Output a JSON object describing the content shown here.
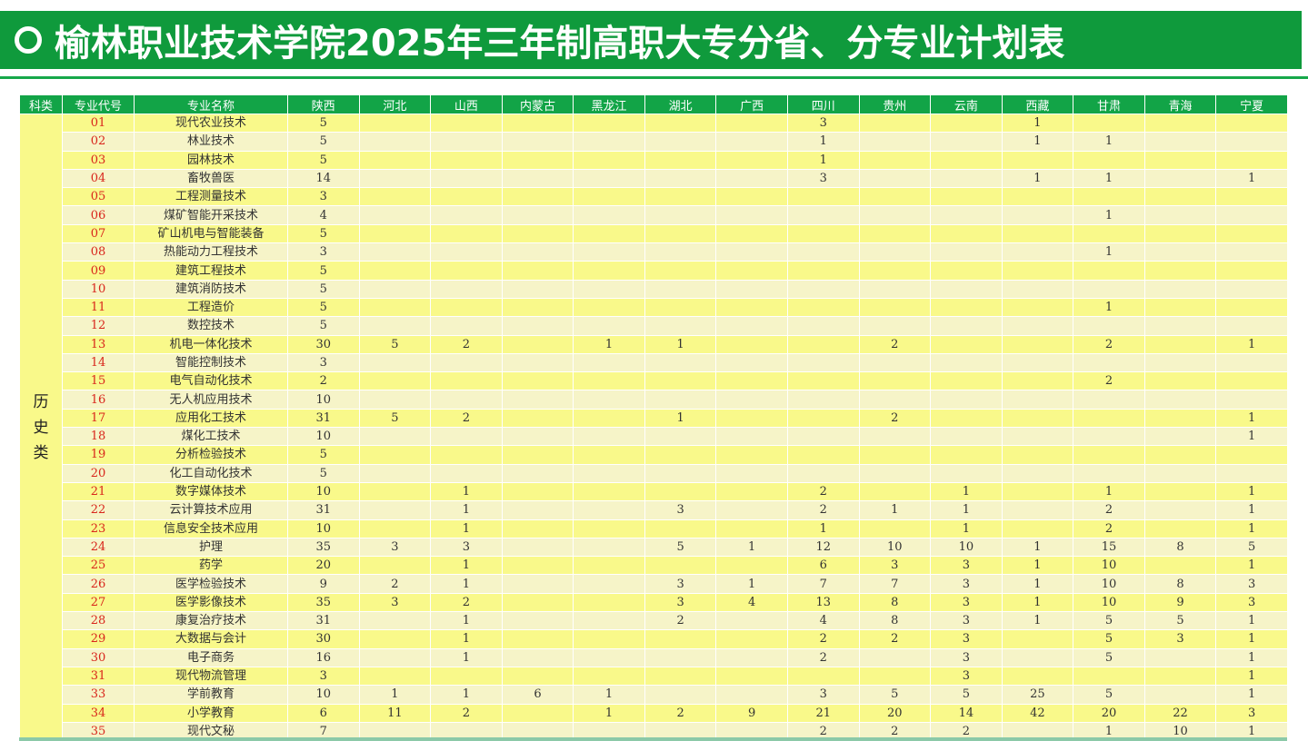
{
  "title": "榆林职业技术学院2025年三年制高职大专分省、分专业计划表",
  "colors": {
    "title_bg": "#0f9a3c",
    "header_bg": "#12a447",
    "row_odd": "#f9f98a",
    "row_even": "#f6f4c8",
    "code_text": "#d9261c"
  },
  "table": {
    "headers": [
      "科类",
      "专业代号",
      "专业名称",
      "陕西",
      "河北",
      "山西",
      "内蒙古",
      "黑龙江",
      "湖北",
      "广西",
      "四川",
      "贵州",
      "云南",
      "西藏",
      "甘肃",
      "青海",
      "宁夏"
    ],
    "category": "历史类",
    "rows": [
      {
        "code": "01",
        "name": "现代农业技术",
        "values": [
          "5",
          "",
          "",
          "",
          "",
          "",
          "",
          "3",
          "",
          "",
          "1",
          "",
          "",
          ""
        ]
      },
      {
        "code": "02",
        "name": "林业技术",
        "values": [
          "5",
          "",
          "",
          "",
          "",
          "",
          "",
          "1",
          "",
          "",
          "1",
          "1",
          "",
          ""
        ]
      },
      {
        "code": "03",
        "name": "园林技术",
        "values": [
          "5",
          "",
          "",
          "",
          "",
          "",
          "",
          "1",
          "",
          "",
          "",
          "",
          "",
          ""
        ]
      },
      {
        "code": "04",
        "name": "畜牧兽医",
        "values": [
          "14",
          "",
          "",
          "",
          "",
          "",
          "",
          "3",
          "",
          "",
          "1",
          "1",
          "",
          "1"
        ]
      },
      {
        "code": "05",
        "name": "工程测量技术",
        "values": [
          "3",
          "",
          "",
          "",
          "",
          "",
          "",
          "",
          "",
          "",
          "",
          "",
          "",
          ""
        ]
      },
      {
        "code": "06",
        "name": "煤矿智能开采技术",
        "values": [
          "4",
          "",
          "",
          "",
          "",
          "",
          "",
          "",
          "",
          "",
          "",
          "1",
          "",
          ""
        ]
      },
      {
        "code": "07",
        "name": "矿山机电与智能装备",
        "values": [
          "5",
          "",
          "",
          "",
          "",
          "",
          "",
          "",
          "",
          "",
          "",
          "",
          "",
          ""
        ]
      },
      {
        "code": "08",
        "name": "热能动力工程技术",
        "values": [
          "3",
          "",
          "",
          "",
          "",
          "",
          "",
          "",
          "",
          "",
          "",
          "1",
          "",
          ""
        ]
      },
      {
        "code": "09",
        "name": "建筑工程技术",
        "values": [
          "5",
          "",
          "",
          "",
          "",
          "",
          "",
          "",
          "",
          "",
          "",
          "",
          "",
          ""
        ]
      },
      {
        "code": "10",
        "name": "建筑消防技术",
        "values": [
          "5",
          "",
          "",
          "",
          "",
          "",
          "",
          "",
          "",
          "",
          "",
          "",
          "",
          ""
        ]
      },
      {
        "code": "11",
        "name": "工程造价",
        "values": [
          "5",
          "",
          "",
          "",
          "",
          "",
          "",
          "",
          "",
          "",
          "",
          "1",
          "",
          ""
        ]
      },
      {
        "code": "12",
        "name": "数控技术",
        "values": [
          "5",
          "",
          "",
          "",
          "",
          "",
          "",
          "",
          "",
          "",
          "",
          "",
          "",
          ""
        ]
      },
      {
        "code": "13",
        "name": "机电一体化技术",
        "values": [
          "30",
          "5",
          "2",
          "",
          "1",
          "1",
          "",
          "",
          "2",
          "",
          "",
          "2",
          "",
          "1"
        ]
      },
      {
        "code": "14",
        "name": "智能控制技术",
        "values": [
          "3",
          "",
          "",
          "",
          "",
          "",
          "",
          "",
          "",
          "",
          "",
          "",
          "",
          ""
        ]
      },
      {
        "code": "15",
        "name": "电气自动化技术",
        "values": [
          "2",
          "",
          "",
          "",
          "",
          "",
          "",
          "",
          "",
          "",
          "",
          "2",
          "",
          ""
        ]
      },
      {
        "code": "16",
        "name": "无人机应用技术",
        "values": [
          "10",
          "",
          "",
          "",
          "",
          "",
          "",
          "",
          "",
          "",
          "",
          "",
          "",
          ""
        ]
      },
      {
        "code": "17",
        "name": "应用化工技术",
        "values": [
          "31",
          "5",
          "2",
          "",
          "",
          "1",
          "",
          "",
          "2",
          "",
          "",
          "",
          "",
          "1"
        ]
      },
      {
        "code": "18",
        "name": "煤化工技术",
        "values": [
          "10",
          "",
          "",
          "",
          "",
          "",
          "",
          "",
          "",
          "",
          "",
          "",
          "",
          "1"
        ]
      },
      {
        "code": "19",
        "name": "分析检验技术",
        "values": [
          "5",
          "",
          "",
          "",
          "",
          "",
          "",
          "",
          "",
          "",
          "",
          "",
          "",
          ""
        ]
      },
      {
        "code": "20",
        "name": "化工自动化技术",
        "values": [
          "5",
          "",
          "",
          "",
          "",
          "",
          "",
          "",
          "",
          "",
          "",
          "",
          "",
          ""
        ]
      },
      {
        "code": "21",
        "name": "数字媒体技术",
        "values": [
          "10",
          "",
          "1",
          "",
          "",
          "",
          "",
          "2",
          "",
          "1",
          "",
          "1",
          "",
          "1"
        ]
      },
      {
        "code": "22",
        "name": "云计算技术应用",
        "values": [
          "31",
          "",
          "1",
          "",
          "",
          "3",
          "",
          "2",
          "1",
          "1",
          "",
          "2",
          "",
          "1"
        ]
      },
      {
        "code": "23",
        "name": "信息安全技术应用",
        "values": [
          "10",
          "",
          "1",
          "",
          "",
          "",
          "",
          "1",
          "",
          "1",
          "",
          "2",
          "",
          "1"
        ]
      },
      {
        "code": "24",
        "name": "护理",
        "values": [
          "35",
          "3",
          "3",
          "",
          "",
          "5",
          "1",
          "12",
          "10",
          "10",
          "1",
          "15",
          "8",
          "5"
        ]
      },
      {
        "code": "25",
        "name": "药学",
        "values": [
          "20",
          "",
          "1",
          "",
          "",
          "",
          "",
          "6",
          "3",
          "3",
          "1",
          "10",
          "",
          "1"
        ]
      },
      {
        "code": "26",
        "name": "医学检验技术",
        "values": [
          "9",
          "2",
          "1",
          "",
          "",
          "3",
          "1",
          "7",
          "7",
          "3",
          "1",
          "10",
          "8",
          "3"
        ]
      },
      {
        "code": "27",
        "name": "医学影像技术",
        "values": [
          "35",
          "3",
          "2",
          "",
          "",
          "3",
          "4",
          "13",
          "8",
          "3",
          "1",
          "10",
          "9",
          "3"
        ]
      },
      {
        "code": "28",
        "name": "康复治疗技术",
        "values": [
          "31",
          "",
          "1",
          "",
          "",
          "2",
          "",
          "4",
          "8",
          "3",
          "1",
          "5",
          "5",
          "1"
        ]
      },
      {
        "code": "29",
        "name": "大数据与会计",
        "values": [
          "30",
          "",
          "1",
          "",
          "",
          "",
          "",
          "2",
          "2",
          "3",
          "",
          "5",
          "3",
          "1"
        ]
      },
      {
        "code": "30",
        "name": "电子商务",
        "values": [
          "16",
          "",
          "1",
          "",
          "",
          "",
          "",
          "2",
          "",
          "3",
          "",
          "5",
          "",
          "1"
        ]
      },
      {
        "code": "31",
        "name": "现代物流管理",
        "values": [
          "3",
          "",
          "",
          "",
          "",
          "",
          "",
          "",
          "",
          "3",
          "",
          "",
          "",
          "1"
        ]
      },
      {
        "code": "33",
        "name": "学前教育",
        "values": [
          "10",
          "1",
          "1",
          "6",
          "1",
          "",
          "",
          "3",
          "5",
          "5",
          "25",
          "5",
          "",
          "1"
        ]
      },
      {
        "code": "34",
        "name": "小学教育",
        "values": [
          "6",
          "11",
          "2",
          "",
          "1",
          "2",
          "9",
          "21",
          "20",
          "14",
          "42",
          "20",
          "22",
          "3"
        ]
      },
      {
        "code": "35",
        "name": "现代文秘",
        "values": [
          "7",
          "",
          "",
          "",
          "",
          "",
          "",
          "2",
          "2",
          "2",
          "",
          "1",
          "10",
          "1"
        ]
      }
    ]
  }
}
